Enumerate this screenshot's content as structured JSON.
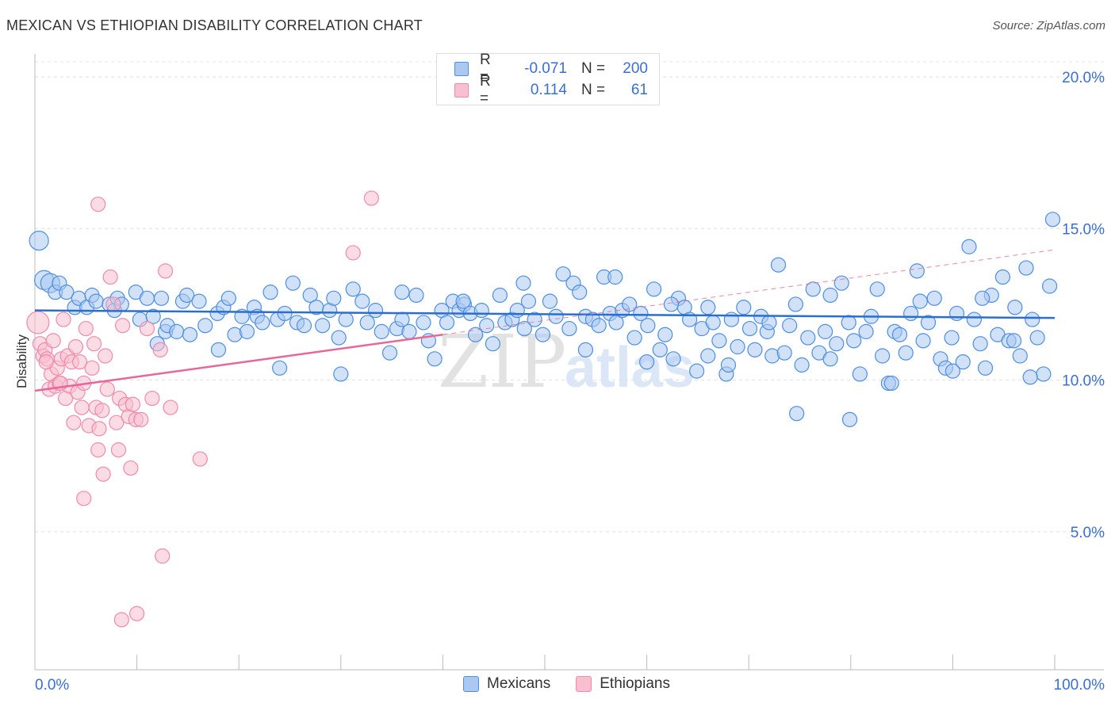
{
  "title": "MEXICAN VS ETHIOPIAN DISABILITY CORRELATION CHART",
  "source": "Source: ZipAtlas.com",
  "colors": {
    "blue": "#4f8fe0",
    "blue_fill": "#aac8f2",
    "pink": "#f08aaa",
    "pink_fill": "#f7bfd0",
    "blue_line": "#2a6fd0",
    "pink_line": "#e8679a",
    "tick_label": "#3a6fd1"
  },
  "legend": {
    "rows": [
      {
        "r_label": "R =",
        "r_value": "-0.071",
        "n_label": "N =",
        "n_value": "200"
      },
      {
        "r_label": "R =",
        "r_value": "0.114",
        "n_label": "N =",
        "n_value": "61"
      }
    ]
  },
  "bottom_legend": {
    "mexicans": "Mexicans",
    "ethiopians": "Ethiopians"
  },
  "watermark": {
    "zip": "ZIP",
    "atlas": "atlas"
  },
  "chart_data": {
    "type": "scatter",
    "title": "MEXICAN VS ETHIOPIAN DISABILITY CORRELATION CHART",
    "xlabel": "",
    "ylabel": "Disability",
    "xlim": [
      0,
      100
    ],
    "ylim": [
      0,
      20
    ],
    "x_tick_labels": [
      "0.0%",
      "100.0%"
    ],
    "y_ticks": [
      5,
      10,
      15,
      20
    ],
    "y_tick_labels": [
      "5.0%",
      "10.0%",
      "15.0%",
      "20.0%"
    ],
    "grid": true,
    "legend_position": "top-center",
    "series": [
      {
        "name": "Mexicans",
        "r": -0.071,
        "n": 200,
        "trend": {
          "x0": 0,
          "y0": 12.3,
          "x1": 100,
          "y1": 12.05
        },
        "points": [
          [
            0.4,
            14.6
          ],
          [
            0.9,
            13.3
          ],
          [
            1.5,
            13.2
          ],
          [
            2.0,
            12.9
          ],
          [
            2.4,
            13.2
          ],
          [
            3.1,
            12.9
          ],
          [
            3.9,
            12.4
          ],
          [
            4.3,
            12.7
          ],
          [
            5.1,
            12.4
          ],
          [
            5.6,
            12.8
          ],
          [
            6.0,
            12.6
          ],
          [
            7.3,
            12.5
          ],
          [
            7.8,
            12.3
          ],
          [
            8.1,
            12.7
          ],
          [
            8.5,
            12.5
          ],
          [
            9.9,
            12.9
          ],
          [
            10.3,
            12.0
          ],
          [
            11.0,
            12.7
          ],
          [
            11.6,
            12.1
          ],
          [
            12.4,
            12.7
          ],
          [
            12.8,
            11.6
          ],
          [
            13.0,
            11.8
          ],
          [
            13.9,
            11.6
          ],
          [
            14.5,
            12.6
          ],
          [
            14.9,
            12.8
          ],
          [
            15.2,
            11.5
          ],
          [
            16.1,
            12.6
          ],
          [
            16.7,
            11.8
          ],
          [
            17.9,
            12.2
          ],
          [
            18.5,
            12.4
          ],
          [
            19.0,
            12.7
          ],
          [
            19.6,
            11.5
          ],
          [
            20.3,
            12.1
          ],
          [
            20.8,
            11.6
          ],
          [
            21.5,
            12.4
          ],
          [
            21.8,
            12.1
          ],
          [
            22.3,
            11.9
          ],
          [
            23.1,
            12.9
          ],
          [
            23.8,
            12.0
          ],
          [
            24.5,
            12.2
          ],
          [
            25.3,
            13.2
          ],
          [
            25.7,
            11.9
          ],
          [
            26.4,
            11.8
          ],
          [
            27.0,
            12.8
          ],
          [
            27.6,
            12.4
          ],
          [
            28.2,
            11.8
          ],
          [
            28.9,
            12.3
          ],
          [
            29.3,
            12.7
          ],
          [
            29.8,
            11.4
          ],
          [
            30.5,
            12.0
          ],
          [
            31.2,
            13.0
          ],
          [
            32.1,
            12.6
          ],
          [
            32.6,
            11.9
          ],
          [
            33.4,
            12.3
          ],
          [
            34.0,
            11.6
          ],
          [
            34.8,
            10.9
          ],
          [
            35.5,
            11.7
          ],
          [
            36.0,
            12.0
          ],
          [
            36.7,
            11.6
          ],
          [
            37.4,
            12.8
          ],
          [
            38.1,
            11.9
          ],
          [
            38.6,
            11.3
          ],
          [
            39.2,
            10.7
          ],
          [
            39.9,
            12.3
          ],
          [
            40.4,
            11.9
          ],
          [
            41.0,
            12.6
          ],
          [
            41.6,
            12.3
          ],
          [
            42.1,
            12.5
          ],
          [
            42.7,
            12.2
          ],
          [
            43.2,
            11.5
          ],
          [
            43.8,
            12.3
          ],
          [
            44.3,
            11.8
          ],
          [
            44.9,
            11.2
          ],
          [
            45.6,
            12.8
          ],
          [
            46.1,
            11.9
          ],
          [
            46.8,
            12.0
          ],
          [
            47.3,
            12.3
          ],
          [
            47.9,
            13.2
          ],
          [
            48.4,
            12.6
          ],
          [
            49.0,
            12.0
          ],
          [
            49.8,
            11.5
          ],
          [
            50.5,
            12.6
          ],
          [
            51.1,
            12.1
          ],
          [
            51.8,
            13.5
          ],
          [
            52.4,
            11.7
          ],
          [
            52.8,
            13.2
          ],
          [
            53.4,
            12.9
          ],
          [
            54.0,
            12.1
          ],
          [
            54.7,
            12.0
          ],
          [
            55.3,
            11.8
          ],
          [
            55.8,
            13.4
          ],
          [
            56.4,
            12.2
          ],
          [
            57.0,
            11.9
          ],
          [
            57.6,
            12.3
          ],
          [
            58.3,
            12.5
          ],
          [
            58.8,
            11.4
          ],
          [
            59.4,
            12.2
          ],
          [
            60.1,
            11.8
          ],
          [
            60.7,
            13.0
          ],
          [
            61.3,
            11.0
          ],
          [
            61.8,
            11.5
          ],
          [
            62.6,
            10.7
          ],
          [
            63.1,
            12.7
          ],
          [
            63.7,
            12.4
          ],
          [
            64.2,
            12.0
          ],
          [
            64.9,
            10.3
          ],
          [
            65.4,
            11.7
          ],
          [
            66.0,
            10.8
          ],
          [
            66.5,
            11.9
          ],
          [
            67.1,
            11.3
          ],
          [
            67.8,
            10.2
          ],
          [
            68.3,
            12.0
          ],
          [
            68.9,
            11.1
          ],
          [
            69.5,
            12.4
          ],
          [
            70.1,
            11.7
          ],
          [
            70.6,
            11.0
          ],
          [
            71.2,
            12.1
          ],
          [
            71.8,
            11.6
          ],
          [
            72.3,
            10.8
          ],
          [
            72.9,
            13.8
          ],
          [
            73.5,
            10.9
          ],
          [
            74.0,
            11.8
          ],
          [
            74.6,
            12.5
          ],
          [
            75.2,
            10.5
          ],
          [
            75.8,
            11.4
          ],
          [
            76.3,
            13.0
          ],
          [
            76.9,
            10.9
          ],
          [
            77.5,
            11.6
          ],
          [
            78.0,
            10.7
          ],
          [
            78.6,
            11.2
          ],
          [
            79.1,
            13.2
          ],
          [
            79.8,
            11.9
          ],
          [
            80.3,
            11.3
          ],
          [
            80.9,
            10.2
          ],
          [
            81.5,
            11.6
          ],
          [
            82.0,
            12.1
          ],
          [
            82.6,
            13.0
          ],
          [
            83.1,
            10.8
          ],
          [
            83.7,
            9.9
          ],
          [
            84.3,
            11.6
          ],
          [
            84.8,
            11.5
          ],
          [
            85.4,
            10.9
          ],
          [
            85.9,
            12.2
          ],
          [
            86.5,
            13.6
          ],
          [
            87.1,
            11.3
          ],
          [
            87.6,
            11.9
          ],
          [
            88.2,
            12.7
          ],
          [
            88.8,
            10.7
          ],
          [
            89.3,
            10.4
          ],
          [
            89.9,
            11.4
          ],
          [
            90.4,
            12.2
          ],
          [
            91.0,
            10.6
          ],
          [
            91.6,
            14.4
          ],
          [
            92.1,
            12.0
          ],
          [
            92.7,
            11.2
          ],
          [
            93.2,
            10.4
          ],
          [
            93.8,
            12.8
          ],
          [
            94.4,
            11.5
          ],
          [
            94.9,
            13.4
          ],
          [
            95.5,
            11.3
          ],
          [
            96.1,
            12.4
          ],
          [
            96.6,
            10.8
          ],
          [
            97.2,
            13.7
          ],
          [
            97.8,
            12.0
          ],
          [
            98.3,
            11.4
          ],
          [
            98.9,
            10.2
          ],
          [
            99.5,
            13.1
          ],
          [
            12.0,
            11.2
          ],
          [
            18.0,
            11.0
          ],
          [
            24.0,
            10.4
          ],
          [
            30.0,
            10.2
          ],
          [
            36.0,
            12.9
          ],
          [
            42.0,
            12.6
          ],
          [
            48.0,
            11.7
          ],
          [
            54.0,
            11.0
          ],
          [
            60.0,
            10.6
          ],
          [
            66.0,
            12.4
          ],
          [
            72.0,
            11.9
          ],
          [
            78.0,
            12.8
          ],
          [
            84.0,
            9.9
          ],
          [
            90.0,
            10.3
          ],
          [
            96.0,
            11.3
          ],
          [
            56.9,
            13.4
          ],
          [
            62.4,
            12.5
          ],
          [
            68.0,
            10.5
          ],
          [
            74.7,
            8.9
          ],
          [
            79.9,
            8.7
          ],
          [
            86.8,
            12.6
          ],
          [
            92.9,
            12.7
          ],
          [
            97.6,
            10.1
          ],
          [
            99.8,
            15.3
          ]
        ]
      },
      {
        "name": "Ethiopians",
        "r": 0.114,
        "n": 61,
        "trend": {
          "x0": 0,
          "y0": 9.65,
          "x1": 40,
          "y1": 11.5
        },
        "trend_dashed": {
          "x0": 40,
          "y0": 11.5,
          "x1": 100,
          "y1": 14.3
        },
        "points": [
          [
            0.3,
            11.9
          ],
          [
            0.5,
            11.2
          ],
          [
            0.8,
            10.8
          ],
          [
            1.0,
            11.0
          ],
          [
            1.2,
            10.7
          ],
          [
            1.4,
            9.7
          ],
          [
            1.6,
            10.2
          ],
          [
            1.8,
            11.3
          ],
          [
            2.0,
            9.8
          ],
          [
            2.2,
            10.4
          ],
          [
            2.4,
            9.9
          ],
          [
            2.6,
            10.7
          ],
          [
            2.8,
            12.0
          ],
          [
            3.0,
            9.4
          ],
          [
            3.2,
            10.8
          ],
          [
            3.4,
            9.8
          ],
          [
            3.6,
            10.6
          ],
          [
            3.8,
            8.6
          ],
          [
            4.0,
            11.1
          ],
          [
            4.2,
            9.6
          ],
          [
            4.4,
            10.6
          ],
          [
            4.6,
            9.1
          ],
          [
            4.8,
            9.9
          ],
          [
            5.0,
            11.7
          ],
          [
            5.3,
            8.5
          ],
          [
            5.6,
            10.4
          ],
          [
            5.8,
            11.2
          ],
          [
            6.0,
            9.1
          ],
          [
            6.3,
            8.4
          ],
          [
            6.6,
            9.0
          ],
          [
            6.9,
            10.8
          ],
          [
            7.1,
            9.7
          ],
          [
            7.4,
            13.4
          ],
          [
            7.7,
            12.5
          ],
          [
            8.0,
            8.6
          ],
          [
            8.3,
            9.4
          ],
          [
            8.6,
            11.8
          ],
          [
            8.9,
            9.2
          ],
          [
            9.2,
            8.8
          ],
          [
            9.6,
            9.2
          ],
          [
            9.9,
            8.7
          ],
          [
            10.4,
            8.7
          ],
          [
            11.0,
            11.7
          ],
          [
            11.5,
            9.4
          ],
          [
            12.3,
            11.0
          ],
          [
            12.8,
            13.6
          ],
          [
            13.3,
            9.1
          ],
          [
            6.2,
            7.7
          ],
          [
            8.2,
            7.7
          ],
          [
            6.7,
            6.9
          ],
          [
            9.4,
            7.1
          ],
          [
            16.2,
            7.4
          ],
          [
            4.8,
            6.1
          ],
          [
            12.5,
            4.2
          ],
          [
            8.5,
            2.1
          ],
          [
            10.0,
            2.3
          ],
          [
            6.2,
            15.8
          ],
          [
            31.2,
            14.2
          ],
          [
            33.0,
            16.0
          ],
          [
            1.1,
            10.6
          ],
          [
            2.5,
            9.9
          ]
        ]
      }
    ]
  }
}
